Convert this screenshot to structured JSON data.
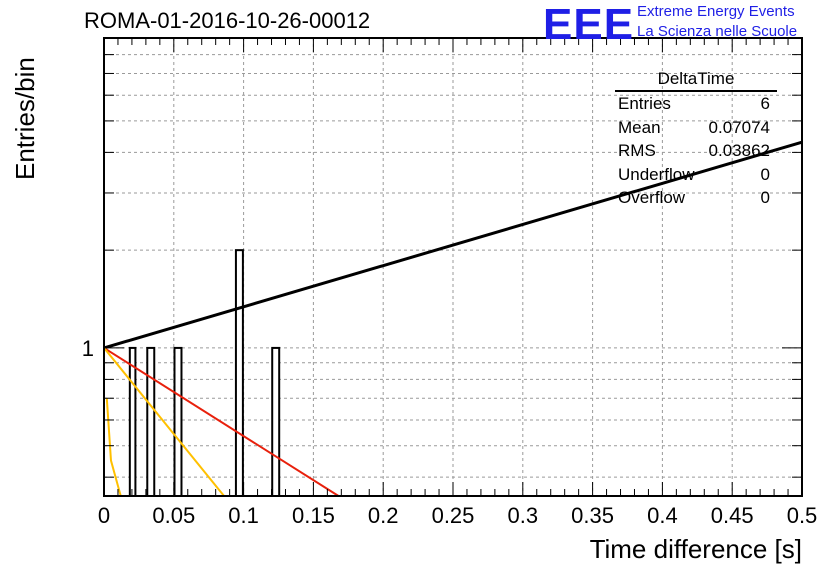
{
  "title": "ROMA-01-2016-10-26-00012",
  "logo": {
    "mark": "EEE",
    "line1": "Extreme Energy Events",
    "line2": "La Scienza nelle Scuole"
  },
  "stats_box": {
    "title": "DeltaTime",
    "rows": [
      {
        "label": "Entries",
        "value": "6"
      },
      {
        "label": "Mean",
        "value": "0.07074"
      },
      {
        "label": "RMS",
        "value": "0.03862"
      },
      {
        "label": "Underflow",
        "value": "0"
      },
      {
        "label": "Overflow",
        "value": "0"
      }
    ]
  },
  "chart_data": {
    "type": "bar",
    "title": "ROMA-01-2016-10-26-00012",
    "xlabel": "Time difference [s]",
    "ylabel": "Entries/bin",
    "xlim": [
      0,
      0.5
    ],
    "ylim": [
      0.35,
      9
    ],
    "y_scale": "log",
    "grid": true,
    "x_ticks": [
      "0",
      "0.05",
      "0.1",
      "0.15",
      "0.2",
      "0.25",
      "0.3",
      "0.35",
      "0.4",
      "0.45",
      "0.5"
    ],
    "y_tick_labels": [
      {
        "value": 1,
        "label": "1"
      }
    ],
    "bins": [
      {
        "x0": 0.0185,
        "x1": 0.0225,
        "count": 1
      },
      {
        "x0": 0.031,
        "x1": 0.036,
        "count": 1
      },
      {
        "x0": 0.0505,
        "x1": 0.0555,
        "count": 1
      },
      {
        "x0": 0.0945,
        "x1": 0.0995,
        "count": 2
      },
      {
        "x0": 0.1205,
        "x1": 0.1255,
        "count": 1
      }
    ],
    "lines": [
      {
        "color": "#000000",
        "points": [
          [
            0,
            1
          ],
          [
            0.5,
            4.3
          ]
        ]
      },
      {
        "color": "#e8200c",
        "points": [
          [
            0,
            1
          ],
          [
            0.168,
            0.35
          ]
        ]
      },
      {
        "color": "#ffc000",
        "points": [
          [
            0,
            1
          ],
          [
            0.086,
            0.35
          ]
        ]
      },
      {
        "color": "#ffc000",
        "points": [
          [
            0.002,
            0.7
          ],
          [
            0.005,
            0.45
          ],
          [
            0.012,
            0.35
          ]
        ]
      }
    ]
  }
}
